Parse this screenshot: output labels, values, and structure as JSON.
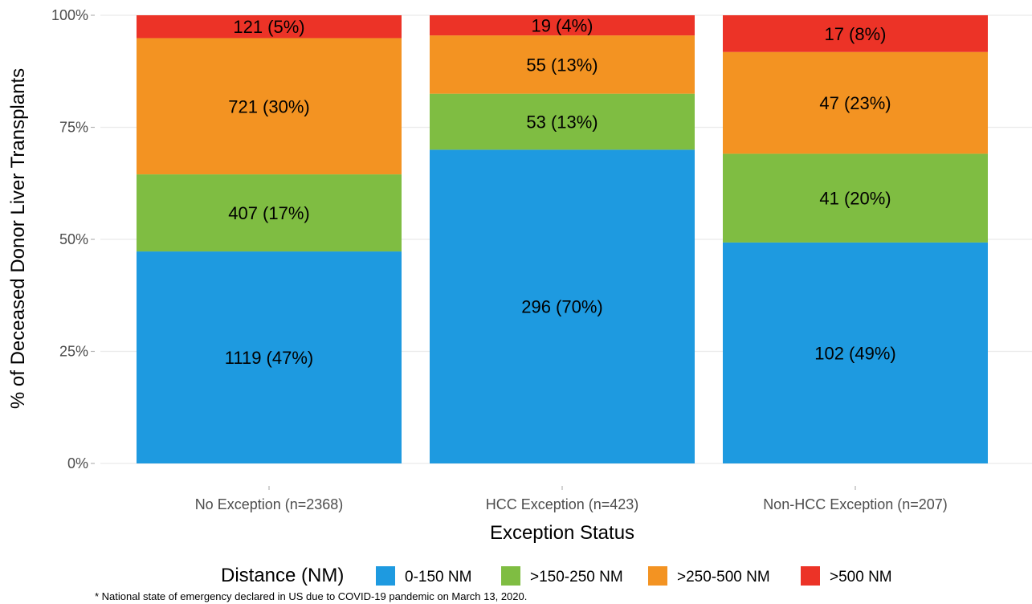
{
  "chart_data": {
    "type": "bar",
    "stacked": true,
    "percent_stacked": true,
    "xlabel": "Exception Status",
    "ylabel": "% of Deceased Donor Liver Transplants",
    "ylim": [
      0,
      1
    ],
    "y_ticks": [
      0,
      0.25,
      0.5,
      0.75,
      1
    ],
    "y_tick_labels": [
      "0%",
      "25%",
      "50%",
      "75%",
      "100%"
    ],
    "categories": [
      "No Exception (n=2368)",
      "HCC Exception (n=423)",
      "Non-HCC Exception (n=207)"
    ],
    "grid": true,
    "legend": {
      "title": "Distance (NM)",
      "position": "bottom"
    },
    "series": [
      {
        "name": "0-150 NM",
        "color": "#1e9ae0",
        "counts": [
          1119,
          296,
          102
        ],
        "fractions": [
          0.473,
          0.7,
          0.493
        ],
        "labels": [
          "1119 (47%)",
          "296 (70%)",
          "102 (49%)"
        ]
      },
      {
        "name": ">150-250 NM",
        "color": "#7fbd42",
        "counts": [
          407,
          53,
          41
        ],
        "fractions": [
          0.172,
          0.125,
          0.198
        ],
        "labels": [
          "407 (17%)",
          "53 (13%)",
          "41 (20%)"
        ]
      },
      {
        "name": ">250-500 NM",
        "color": "#f39322",
        "counts": [
          721,
          55,
          47
        ],
        "fractions": [
          0.304,
          0.13,
          0.227
        ],
        "labels": [
          "721 (30%)",
          "55 (13%)",
          "47 (23%)"
        ]
      },
      {
        "name": ">500 NM",
        "color": "#ec3327",
        "counts": [
          121,
          19,
          17
        ],
        "fractions": [
          0.051,
          0.045,
          0.082
        ],
        "labels": [
          "121 (5%)",
          "19 (4%)",
          "17 (8%)"
        ]
      }
    ],
    "footnote": "* National state of emergency declared in US due to COVID-19 pandemic on March 13, 2020."
  }
}
